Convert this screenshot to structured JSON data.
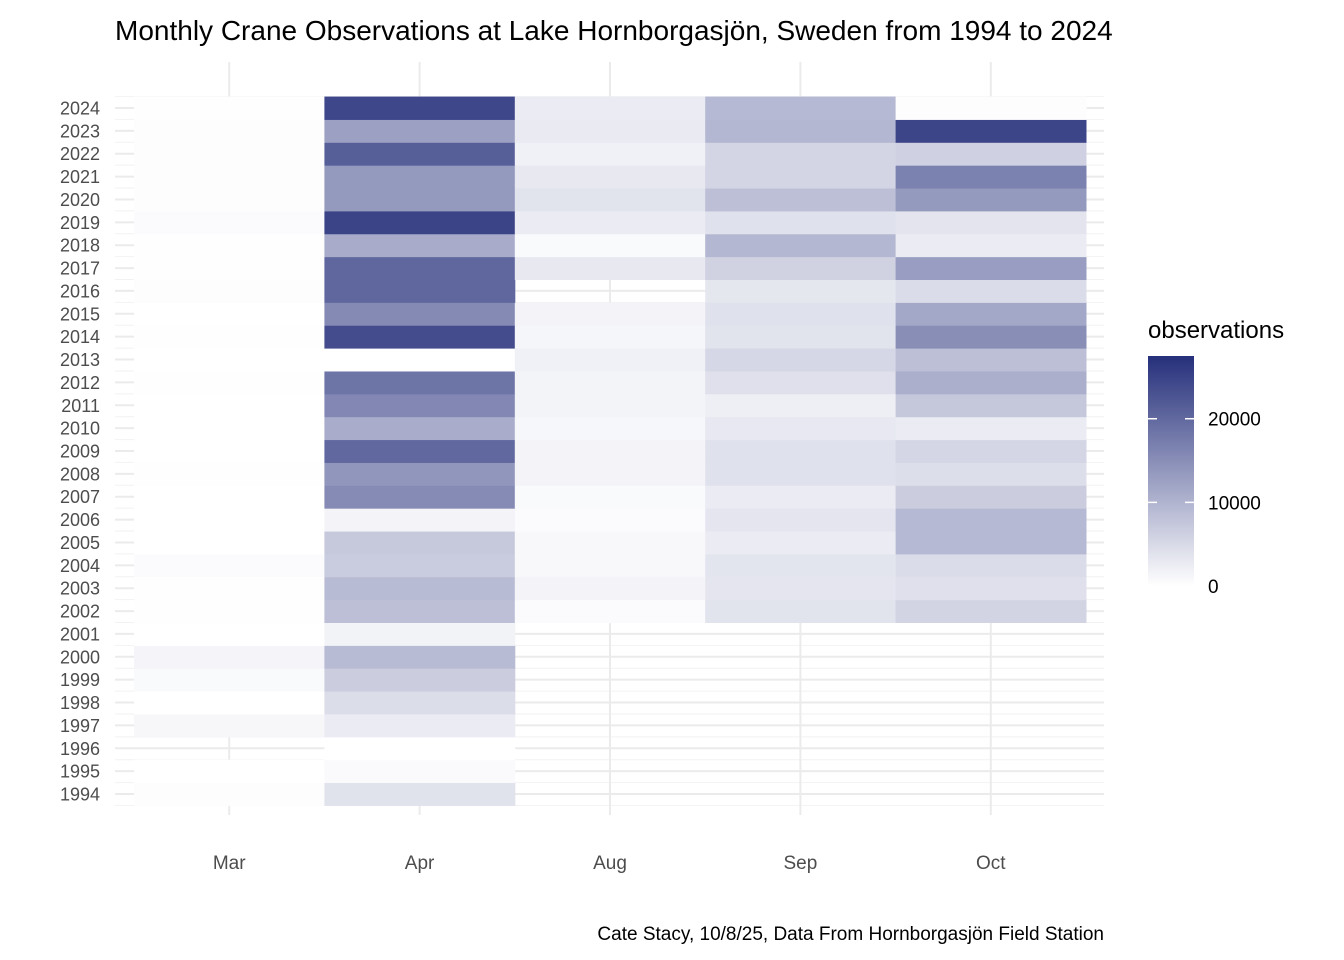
{
  "chart_data": {
    "type": "heatmap",
    "title": "Monthly Crane Observations at Lake Hornborgasjön, Sweden from 1994 to 2024",
    "caption": "Cate Stacy, 10/8/25, Data From Hornborgasjön Field Station",
    "xlabel": "",
    "ylabel": "",
    "x_categories": [
      "Mar",
      "Apr",
      "Aug",
      "Sep",
      "Oct"
    ],
    "y_categories": [
      "1994",
      "1995",
      "1996",
      "1997",
      "1998",
      "1999",
      "2000",
      "2001",
      "2002",
      "2003",
      "2004",
      "2005",
      "2006",
      "2007",
      "2008",
      "2009",
      "2010",
      "2011",
      "2012",
      "2013",
      "2014",
      "2015",
      "2016",
      "2017",
      "2018",
      "2019",
      "2020",
      "2021",
      "2022",
      "2023",
      "2024"
    ],
    "values": {
      "2024": [
        100,
        24400,
        2500,
        9250,
        300
      ],
      "2023": [
        200,
        12600,
        2750,
        9500,
        24750
      ],
      "2022": [
        200,
        21250,
        1900,
        5600,
        6100
      ],
      "2021": [
        200,
        13500,
        3100,
        5600,
        16600
      ],
      "2020": [
        200,
        13500,
        3750,
        8500,
        13500
      ],
      "2019": [
        500,
        24900,
        2500,
        4000,
        3600
      ],
      "2018": [
        100,
        11000,
        700,
        9500,
        2500
      ],
      "2017": [
        100,
        20250,
        3100,
        6000,
        13000
      ],
      "2016": [
        300,
        20250,
        null,
        3250,
        4600
      ],
      "2015": [
        50,
        15600,
        1400,
        4000,
        11500
      ],
      "2014": [
        100,
        23750,
        1250,
        3750,
        15000
      ],
      "2013": [
        0,
        0,
        1900,
        5250,
        8500
      ],
      "2012": [
        150,
        18500,
        1500,
        4100,
        10600
      ],
      "2011": [
        0,
        15900,
        1500,
        2100,
        7400
      ],
      "2010": [
        0,
        10900,
        1100,
        3000,
        2600
      ],
      "2009": [
        0,
        20000,
        1400,
        4000,
        5400
      ],
      "2008": [
        100,
        13900,
        1400,
        4000,
        4400
      ],
      "2007": [
        0,
        15400,
        700,
        2600,
        6600
      ],
      "2006": [
        0,
        1400,
        500,
        3400,
        9250
      ],
      "2005": [
        0,
        7250,
        900,
        2500,
        9250
      ],
      "2004": [
        500,
        6900,
        900,
        3500,
        4600
      ],
      "2003": [
        100,
        9000,
        1400,
        3400,
        4100
      ],
      "2002": [
        100,
        8500,
        500,
        3750,
        5750
      ],
      "2001": [
        0,
        1600,
        null,
        null,
        null
      ],
      "2000": [
        1300,
        9000,
        null,
        null,
        null
      ],
      "1999": [
        700,
        6600,
        null,
        null,
        null
      ],
      "1998": [
        50,
        4500,
        null,
        null,
        null
      ],
      "1997": [
        1000,
        2500,
        null,
        null,
        null
      ],
      "1996": [
        null,
        0,
        null,
        null,
        null
      ],
      "1995": [
        0,
        600,
        null,
        null,
        null
      ],
      "1994": [
        300,
        3900,
        null,
        null,
        null
      ]
    },
    "color_scale": {
      "low": "#FFFFFF",
      "high": "#26307B",
      "range": [
        0,
        27500
      ]
    },
    "legend": {
      "title": "observations",
      "ticks": [
        "0",
        "10000",
        "20000"
      ],
      "tick_values": [
        0,
        10000,
        20000
      ],
      "placement": "right"
    },
    "grid": true
  }
}
